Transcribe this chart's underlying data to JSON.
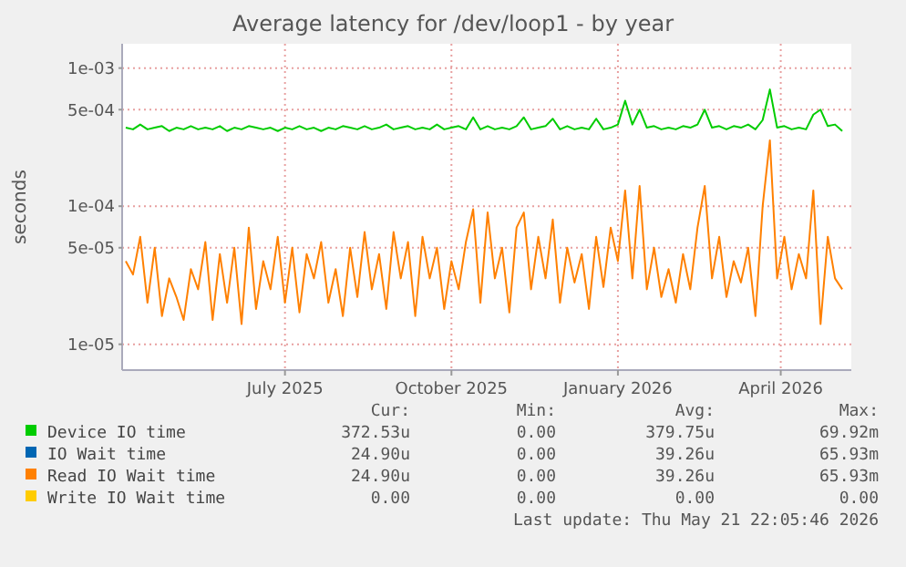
{
  "chart_data": {
    "type": "line",
    "title": "Average latency for /dev/loop1 - by year",
    "ylabel": "seconds",
    "log": "y",
    "grid": true,
    "legend": "bottom",
    "line_style": "solid",
    "marker": "none",
    "x": [
      "2025-04-04",
      "2025-04-08",
      "2025-04-12",
      "2025-04-16",
      "2025-04-20",
      "2025-04-24",
      "2025-04-28",
      "2025-05-02",
      "2025-05-06",
      "2025-05-10",
      "2025-05-14",
      "2025-05-18",
      "2025-05-22",
      "2025-05-26",
      "2025-05-30",
      "2025-06-03",
      "2025-06-07",
      "2025-06-11",
      "2025-06-15",
      "2025-06-19",
      "2025-06-23",
      "2025-06-27",
      "2025-07-01",
      "2025-07-05",
      "2025-07-09",
      "2025-07-13",
      "2025-07-17",
      "2025-07-21",
      "2025-07-25",
      "2025-07-29",
      "2025-08-02",
      "2025-08-06",
      "2025-08-10",
      "2025-08-14",
      "2025-08-18",
      "2025-08-22",
      "2025-08-26",
      "2025-08-30",
      "2025-09-03",
      "2025-09-07",
      "2025-09-11",
      "2025-09-15",
      "2025-09-19",
      "2025-09-23",
      "2025-09-27",
      "2025-10-01",
      "2025-10-05",
      "2025-10-09",
      "2025-10-13",
      "2025-10-17",
      "2025-10-21",
      "2025-10-25",
      "2025-10-29",
      "2025-11-02",
      "2025-11-06",
      "2025-11-10",
      "2025-11-14",
      "2025-11-18",
      "2025-11-22",
      "2025-11-26",
      "2025-11-30",
      "2025-12-04",
      "2025-12-08",
      "2025-12-12",
      "2025-12-16",
      "2025-12-20",
      "2025-12-24",
      "2025-12-28",
      "2026-01-01",
      "2026-01-05",
      "2026-01-09",
      "2026-01-13",
      "2026-01-17",
      "2026-01-21",
      "2026-01-25",
      "2026-01-29",
      "2026-02-02",
      "2026-02-06",
      "2026-02-10",
      "2026-02-14",
      "2026-02-18",
      "2026-02-22",
      "2026-02-26",
      "2026-03-02",
      "2026-03-06",
      "2026-03-10",
      "2026-03-14",
      "2026-03-18",
      "2026-03-22",
      "2026-03-26",
      "2026-03-30",
      "2026-04-03",
      "2026-04-07",
      "2026-04-11",
      "2026-04-15",
      "2026-04-19",
      "2026-04-23",
      "2026-04-27",
      "2026-05-01",
      "2026-05-05"
    ],
    "xlim": [
      "2025-04-02",
      "2026-05-10"
    ],
    "xticks": [
      {
        "value": "2025-07-01",
        "label": "July 2025"
      },
      {
        "value": "2025-10-01",
        "label": "October 2025"
      },
      {
        "value": "2026-01-01",
        "label": "January 2026"
      },
      {
        "value": "2026-04-01",
        "label": "April 2026"
      }
    ],
    "ylim": [
      6.5e-06,
      0.0015
    ],
    "yticks": [
      {
        "value": 1e-05,
        "label": "1e-05"
      },
      {
        "value": 5e-05,
        "label": "5e-05"
      },
      {
        "value": 0.0001,
        "label": "1e-04"
      },
      {
        "value": 0.0005,
        "label": "5e-04"
      },
      {
        "value": 0.001,
        "label": "1e-03"
      }
    ],
    "series": [
      {
        "name": "Device IO time",
        "color": "#00cc00",
        "values": [
          0.00037,
          0.00036,
          0.00039,
          0.00036,
          0.00037,
          0.00038,
          0.00035,
          0.00037,
          0.00036,
          0.00038,
          0.00036,
          0.00037,
          0.00036,
          0.00038,
          0.00035,
          0.00037,
          0.00036,
          0.00038,
          0.00037,
          0.00036,
          0.00037,
          0.00035,
          0.00037,
          0.00036,
          0.00038,
          0.00036,
          0.00037,
          0.00035,
          0.00037,
          0.00036,
          0.00038,
          0.00037,
          0.00036,
          0.00038,
          0.00036,
          0.00037,
          0.00039,
          0.00036,
          0.00037,
          0.00038,
          0.00036,
          0.00037,
          0.00036,
          0.00039,
          0.00036,
          0.00037,
          0.00038,
          0.00036,
          0.00044,
          0.00036,
          0.00038,
          0.00036,
          0.00037,
          0.00036,
          0.00038,
          0.00044,
          0.00036,
          0.00037,
          0.00038,
          0.00043,
          0.00036,
          0.00038,
          0.00036,
          0.00037,
          0.00036,
          0.00043,
          0.00036,
          0.00037,
          0.00039,
          0.00058,
          0.00039,
          0.0005,
          0.00037,
          0.00038,
          0.00036,
          0.00037,
          0.00036,
          0.00038,
          0.00037,
          0.00039,
          0.0005,
          0.00037,
          0.00038,
          0.00036,
          0.00038,
          0.00037,
          0.00039,
          0.00036,
          0.00042,
          0.0007,
          0.00037,
          0.00038,
          0.00036,
          0.00037,
          0.00036,
          0.00046,
          0.0005,
          0.00038,
          0.00039,
          0.00035
        ]
      },
      {
        "name": "IO Wait time",
        "color": "#0066b3",
        "values": [
          null,
          null,
          null,
          null,
          null,
          null,
          null,
          null,
          null,
          null,
          null,
          null,
          null,
          null,
          null,
          null,
          null,
          null,
          null,
          null,
          null,
          null,
          null,
          null,
          null,
          null,
          null,
          null,
          null,
          null,
          null,
          null,
          null,
          null,
          null,
          null,
          null,
          null,
          null,
          null,
          null,
          null,
          null,
          null,
          null,
          null,
          null,
          null,
          null,
          null,
          null,
          null,
          null,
          null,
          null,
          null,
          null,
          null,
          null,
          null,
          null,
          null,
          null,
          null,
          null,
          null,
          null,
          null,
          null,
          null,
          null,
          null,
          null,
          null,
          null,
          null,
          null,
          null,
          null,
          null,
          null,
          null,
          null,
          null,
          null,
          null,
          null,
          null,
          null,
          null,
          null,
          null,
          null,
          null,
          null,
          null,
          null,
          null,
          null,
          null
        ]
      },
      {
        "name": "Read IO Wait time",
        "color": "#ff8000",
        "values": [
          4e-05,
          3.2e-05,
          6e-05,
          2e-05,
          5e-05,
          1.6e-05,
          3e-05,
          2.2e-05,
          1.5e-05,
          3.5e-05,
          2.5e-05,
          5.5e-05,
          1.5e-05,
          4.5e-05,
          2e-05,
          5e-05,
          1.4e-05,
          7e-05,
          1.8e-05,
          4e-05,
          2.5e-05,
          6e-05,
          2e-05,
          5e-05,
          1.7e-05,
          4.5e-05,
          3e-05,
          5.5e-05,
          2e-05,
          3.5e-05,
          1.6e-05,
          5e-05,
          2.2e-05,
          6.5e-05,
          2.5e-05,
          4.5e-05,
          1.8e-05,
          6.5e-05,
          3e-05,
          5.5e-05,
          1.6e-05,
          6e-05,
          3e-05,
          5e-05,
          1.8e-05,
          4e-05,
          2.5e-05,
          5.5e-05,
          9.5e-05,
          2e-05,
          9e-05,
          3e-05,
          5e-05,
          1.7e-05,
          7e-05,
          9e-05,
          2.5e-05,
          6e-05,
          3e-05,
          8e-05,
          2e-05,
          5e-05,
          2.8e-05,
          4.5e-05,
          1.8e-05,
          6e-05,
          2.6e-05,
          7e-05,
          4e-05,
          0.00013,
          3e-05,
          0.00014,
          2.5e-05,
          5e-05,
          2.2e-05,
          3.5e-05,
          2e-05,
          4.5e-05,
          2.5e-05,
          7e-05,
          0.00014,
          3e-05,
          6e-05,
          2.2e-05,
          4e-05,
          2.8e-05,
          5e-05,
          1.6e-05,
          0.0001,
          0.0003,
          3e-05,
          6e-05,
          2.5e-05,
          4.5e-05,
          3e-05,
          0.00013,
          1.4e-05,
          6e-05,
          3e-05,
          2.5e-05
        ]
      },
      {
        "name": "Write IO Wait time",
        "color": "#ffcc00",
        "values": [
          null,
          null,
          null,
          null,
          null,
          null,
          null,
          null,
          null,
          null,
          null,
          null,
          null,
          null,
          null,
          null,
          null,
          null,
          null,
          null,
          null,
          null,
          null,
          null,
          null,
          null,
          null,
          null,
          null,
          null,
          null,
          null,
          null,
          null,
          null,
          null,
          null,
          null,
          null,
          null,
          null,
          null,
          null,
          null,
          null,
          null,
          null,
          null,
          null,
          null,
          null,
          null,
          null,
          null,
          null,
          null,
          null,
          null,
          null,
          null,
          null,
          null,
          null,
          null,
          null,
          null,
          null,
          null,
          null,
          null,
          null,
          null,
          null,
          null,
          null,
          null,
          null,
          null,
          null,
          null,
          null,
          null,
          null,
          null,
          null,
          null,
          null,
          null,
          null,
          null,
          null,
          null,
          null,
          null,
          null,
          null,
          null,
          null,
          null,
          null
        ]
      }
    ],
    "annotations": [
      "Cur:",
      "Min:",
      "Avg:",
      "Max:",
      "372.53u",
      "0.00",
      "379.75u",
      "69.92m",
      "24.90u",
      "0.00",
      "39.26u",
      "65.93m",
      "24.90u",
      "0.00",
      "39.26u",
      "65.93m",
      "0.00",
      "0.00",
      "0.00",
      "0.00",
      "Last update: Thu May 21 22:05:46 2026"
    ]
  }
}
